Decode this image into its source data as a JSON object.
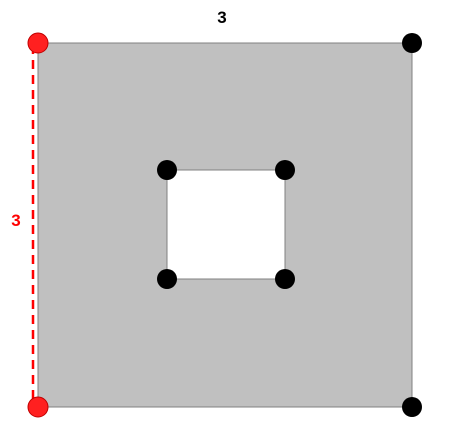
{
  "diagram": {
    "top_label": "3",
    "left_label": "3",
    "colors": {
      "fill": "#c0c0c0",
      "stroke": "#808080",
      "hole_fill": "#ffffff",
      "vertex": "#000000",
      "highlight": "#ff0000",
      "highlight_vertex": "#ff2020",
      "label_default": "#000000"
    }
  }
}
